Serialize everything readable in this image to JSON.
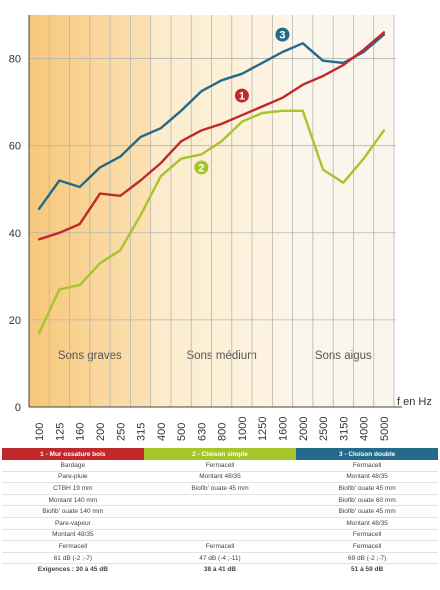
{
  "chart_data": {
    "type": "line",
    "xlabel": "f en Hz",
    "ylabel": "",
    "ylim": [
      0,
      90
    ],
    "yticks": [
      "0",
      "20",
      "40",
      "60",
      "80"
    ],
    "categories": [
      "100",
      "125",
      "160",
      "200",
      "250",
      "315",
      "400",
      "500",
      "630",
      "800",
      "1000",
      "1250",
      "1600",
      "2000",
      "2500",
      "3150",
      "4000",
      "5000"
    ],
    "regions": [
      {
        "label": "Sons graves",
        "from": "100",
        "to": "400",
        "color": "#f8cf86"
      },
      {
        "label": "Sons médium",
        "from": "400",
        "to": "2000",
        "color": "#fdf2dd"
      },
      {
        "label": "Sons aigus",
        "from": "2000",
        "to": "5000",
        "color": "#fbf6ec"
      }
    ],
    "grid": true,
    "series": [
      {
        "name": "1",
        "color": "#c0282a",
        "values": [
          38.5,
          40,
          42,
          49,
          48.5,
          52,
          56,
          61,
          63.5,
          65,
          67,
          69,
          71,
          74,
          76,
          78.5,
          82,
          86
        ]
      },
      {
        "name": "2",
        "color": "#a7c52b",
        "values": [
          17,
          27,
          28,
          33,
          36,
          44,
          53,
          57,
          58,
          61,
          65.5,
          67.5,
          68,
          68,
          54.5,
          51.5,
          57,
          63.5
        ]
      },
      {
        "name": "3",
        "color": "#236a8b",
        "values": [
          45.5,
          52,
          50.5,
          55,
          57.5,
          62,
          64,
          68,
          72.5,
          75,
          76.5,
          79,
          81.5,
          83.5,
          79.5,
          79,
          81.5,
          85.5
        ]
      }
    ],
    "markers": [
      {
        "label": "1",
        "color": "#c0282a",
        "at": "1000",
        "value": 71.5
      },
      {
        "label": "2",
        "color": "#a7c52b",
        "at": "630",
        "value": 55
      },
      {
        "label": "3",
        "color": "#236a8b",
        "at": "1600",
        "value": 85.5
      }
    ]
  },
  "table": {
    "headers": [
      {
        "label": "1 - Mur ossature bois",
        "color": "#c0282a"
      },
      {
        "label": "2 - Cloison simple",
        "color": "#a7c52b"
      },
      {
        "label": "3 - Cloison double",
        "color": "#236a8b"
      }
    ],
    "rows": [
      [
        "Bardage",
        "Fermacell",
        "Fermacell"
      ],
      [
        "Pare-pluie",
        "Montant 48/35",
        "Montant 48/35"
      ],
      [
        "CTBH 19 mm",
        "Biofib' ouate 45 mm",
        "Biofib' ouate 45 mm"
      ],
      [
        "Montant 140 mm",
        "",
        "Biofib' ouate 60 mm"
      ],
      [
        "Biofib' ouate 140 mm",
        "",
        "Biofib' ouate 45 mm"
      ],
      [
        "Pare-vapeur",
        "",
        "Montant 48/35"
      ],
      [
        "Montant 48/35",
        "",
        "Fermacell"
      ],
      [
        "Fermacell",
        "Fermacell",
        "Fermacell"
      ],
      [
        "61 dB (-2 ;-7)",
        "47 dB (-4 ;-11)",
        "69 dB (-2 ;-7)"
      ],
      [
        "Exigences : 30 à 45 dB",
        "38 à 41 dB",
        "51 à 59 dB"
      ]
    ]
  }
}
